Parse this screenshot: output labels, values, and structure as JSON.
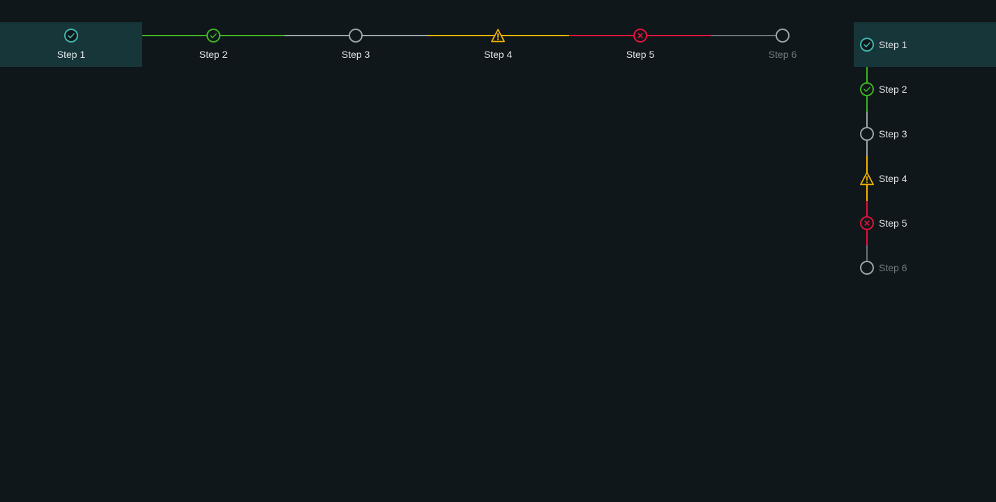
{
  "colors": {
    "background": "#10171a",
    "active_bg": "#173639",
    "current": "#3fb8af",
    "complete": "#3cb521",
    "default": "#9aa5ad",
    "warning": "#f5b400",
    "error": "#e0143c",
    "disabled": "#727a80"
  },
  "horizontal_stepper": {
    "steps": [
      {
        "label": "Step 1",
        "state": "current",
        "icon": "check-circle-icon"
      },
      {
        "label": "Step 2",
        "state": "complete",
        "icon": "check-circle-icon"
      },
      {
        "label": "Step 3",
        "state": "default",
        "icon": "empty-circle-icon"
      },
      {
        "label": "Step 4",
        "state": "warning",
        "icon": "warning-triangle-icon"
      },
      {
        "label": "Step 5",
        "state": "error",
        "icon": "error-circle-icon"
      },
      {
        "label": "Step 6",
        "state": "disabled",
        "icon": "empty-circle-icon"
      }
    ]
  },
  "vertical_stepper": {
    "steps": [
      {
        "label": "Step 1",
        "state": "current",
        "icon": "check-circle-icon"
      },
      {
        "label": "Step 2",
        "state": "complete",
        "icon": "check-circle-icon"
      },
      {
        "label": "Step 3",
        "state": "default",
        "icon": "empty-circle-icon"
      },
      {
        "label": "Step 4",
        "state": "warning",
        "icon": "warning-triangle-icon"
      },
      {
        "label": "Step 5",
        "state": "error",
        "icon": "error-circle-icon"
      },
      {
        "label": "Step 6",
        "state": "disabled",
        "icon": "empty-circle-icon"
      }
    ]
  }
}
